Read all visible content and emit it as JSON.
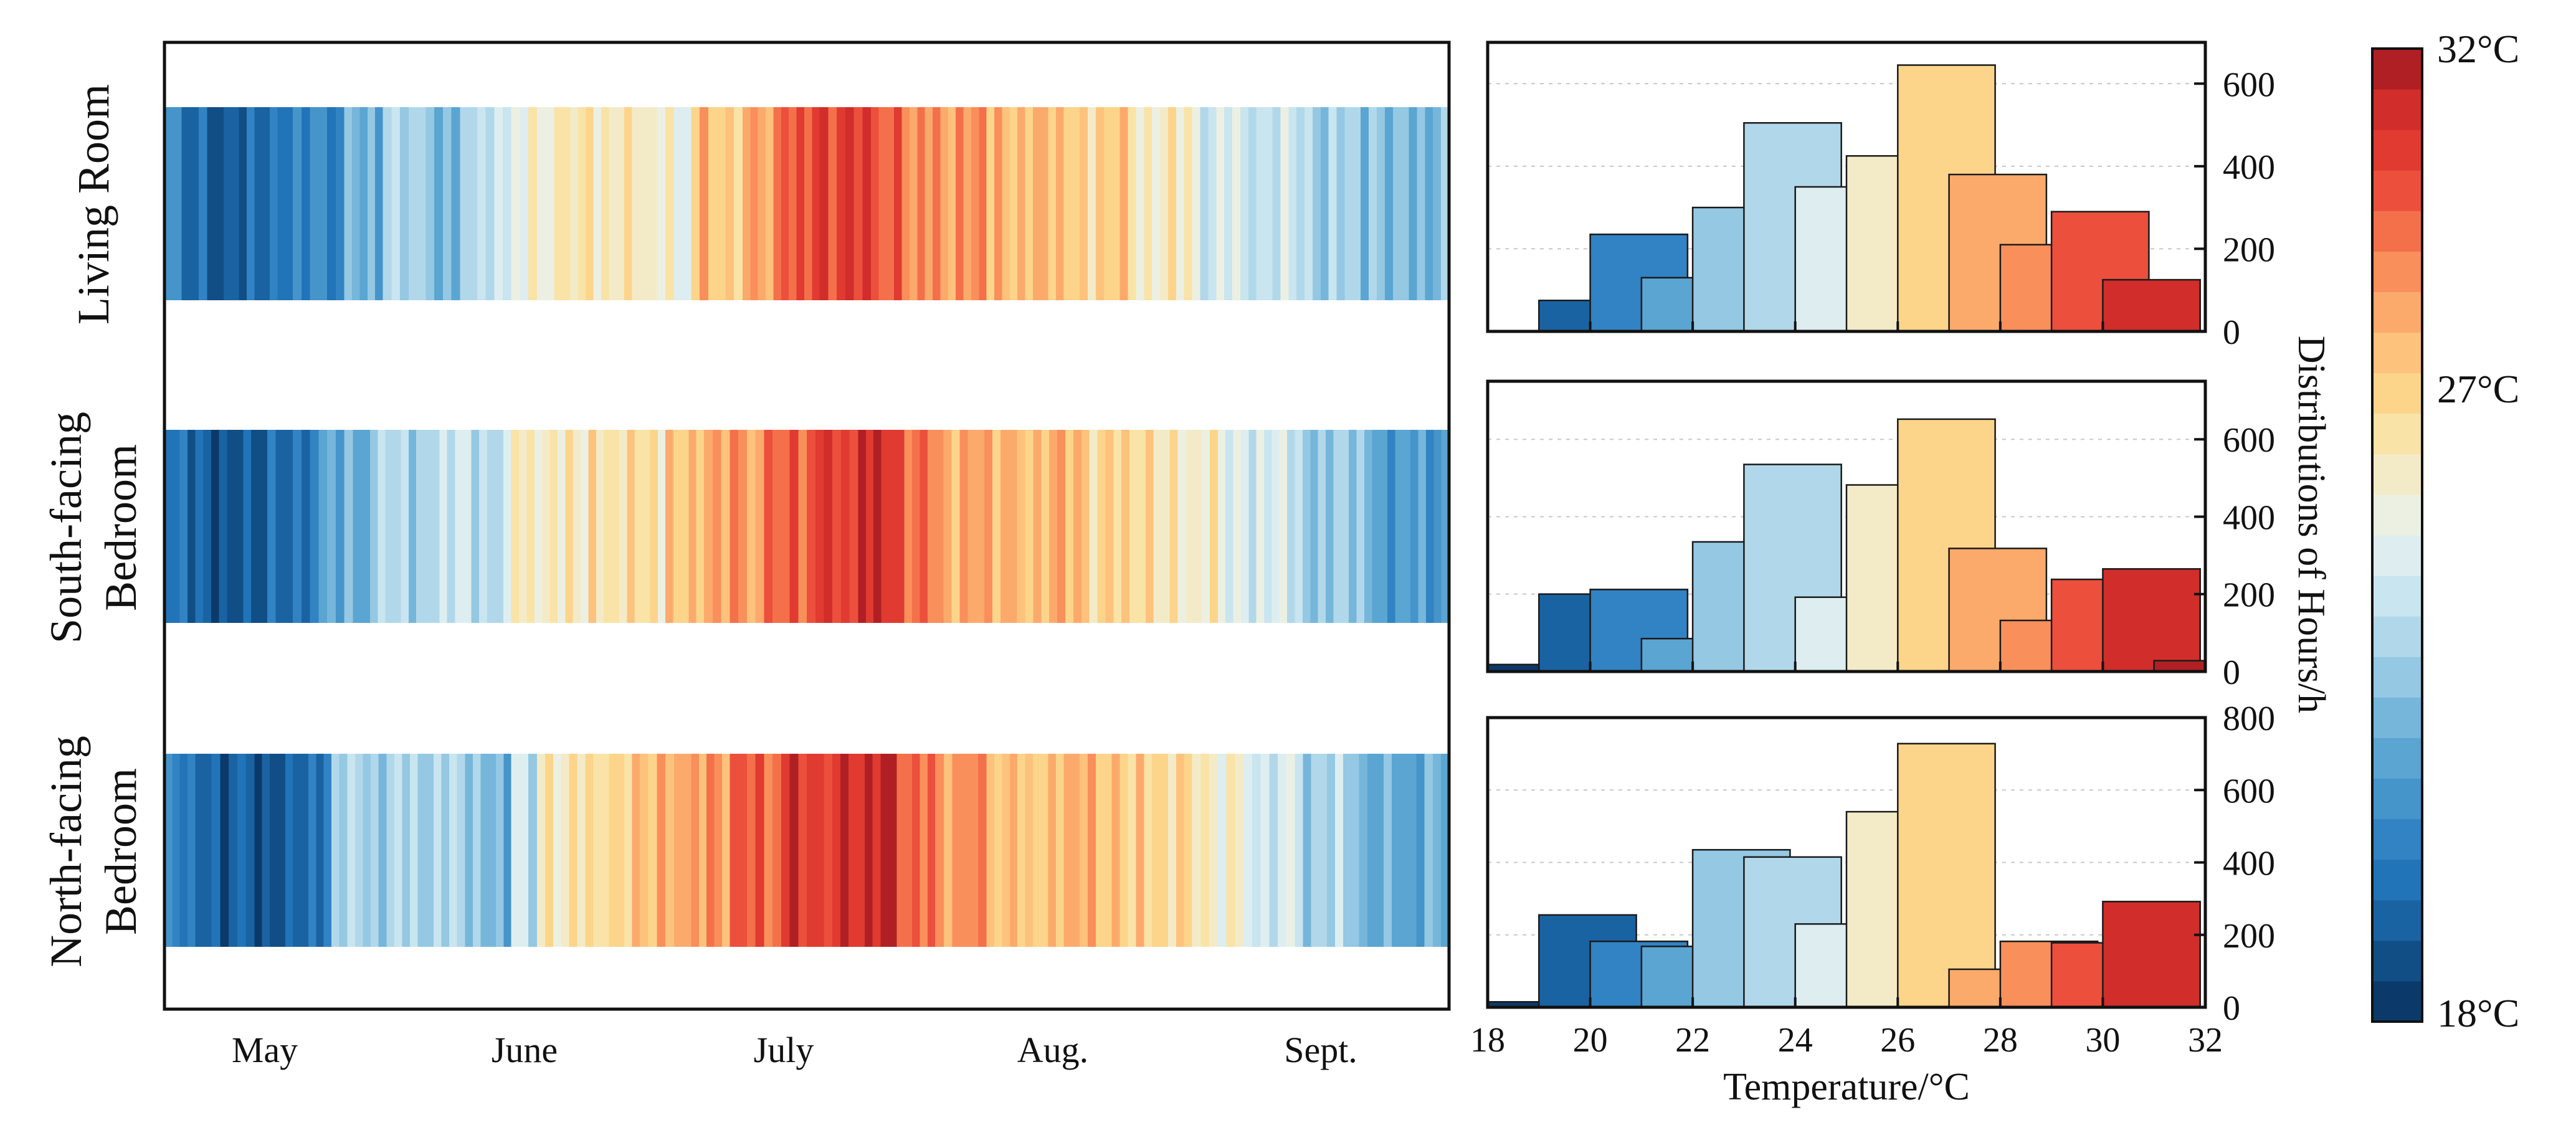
{
  "chart_data": {
    "type": "heatmap-and-histogram",
    "colorbar": {
      "min": 18,
      "max": 32,
      "steps": 24,
      "min_label": "18°C",
      "mid_label": "27°C",
      "max_label": "32°C",
      "mid_value": 27,
      "colors_low_to_high": [
        "#0b3a6a",
        "#114e86",
        "#1a63a3",
        "#2274b8",
        "#3183c3",
        "#4594ca",
        "#5aa5d1",
        "#76b6db",
        "#94c8e3",
        "#b1d8ea",
        "#c9e5ef",
        "#deeef0",
        "#ecf0e3",
        "#f3ebc8",
        "#f9e3a6",
        "#fcd58b",
        "#fdc27c",
        "#fcaa6c",
        "#f98f5a",
        "#f4704a",
        "#ec4f3c",
        "#e03a31",
        "#d02d2b",
        "#b01f24"
      ]
    },
    "heatmap": {
      "months": [
        "May",
        "June",
        "July",
        "Aug.",
        "Sept."
      ],
      "rows": [
        {
          "label_lines": [
            "Living Room"
          ],
          "segments": [
            [
              0,
              0.02,
              20.5
            ],
            [
              0.02,
              0.04,
              20
            ],
            [
              0.04,
              0.07,
              19.5
            ],
            [
              0.07,
              0.1,
              20
            ],
            [
              0.1,
              0.14,
              20.5
            ],
            [
              0.14,
              0.17,
              22
            ],
            [
              0.17,
              0.21,
              23.5
            ],
            [
              0.21,
              0.23,
              22.5
            ],
            [
              0.23,
              0.27,
              24
            ],
            [
              0.27,
              0.31,
              25.5
            ],
            [
              0.31,
              0.37,
              26.2
            ],
            [
              0.37,
              0.41,
              25.5
            ],
            [
              0.41,
              0.45,
              27.5
            ],
            [
              0.45,
              0.48,
              28.5
            ],
            [
              0.48,
              0.51,
              30
            ],
            [
              0.51,
              0.55,
              30.5
            ],
            [
              0.55,
              0.58,
              29.5
            ],
            [
              0.58,
              0.64,
              28.5
            ],
            [
              0.64,
              0.7,
              27.8
            ],
            [
              0.7,
              0.75,
              27
            ],
            [
              0.75,
              0.8,
              26
            ],
            [
              0.8,
              0.85,
              24.5
            ],
            [
              0.85,
              0.9,
              24
            ],
            [
              0.9,
              0.95,
              23
            ],
            [
              0.95,
              1,
              22.5
            ]
          ]
        },
        {
          "label_lines": [
            "South-facing",
            "Bedroom"
          ],
          "segments": [
            [
              0,
              0.03,
              20
            ],
            [
              0.03,
              0.08,
              19
            ],
            [
              0.08,
              0.12,
              20
            ],
            [
              0.12,
              0.16,
              22
            ],
            [
              0.16,
              0.22,
              23.5
            ],
            [
              0.22,
              0.27,
              24
            ],
            [
              0.27,
              0.33,
              26
            ],
            [
              0.33,
              0.39,
              26.5
            ],
            [
              0.39,
              0.42,
              27.5
            ],
            [
              0.42,
              0.46,
              28.5
            ],
            [
              0.46,
              0.5,
              29.5
            ],
            [
              0.5,
              0.54,
              30.5
            ],
            [
              0.54,
              0.57,
              31
            ],
            [
              0.57,
              0.6,
              29.5
            ],
            [
              0.6,
              0.67,
              28.2
            ],
            [
              0.67,
              0.72,
              27.8
            ],
            [
              0.72,
              0.77,
              27
            ],
            [
              0.77,
              0.82,
              26
            ],
            [
              0.82,
              0.88,
              24.5
            ],
            [
              0.88,
              0.94,
              23
            ],
            [
              0.94,
              1,
              21.5
            ]
          ]
        },
        {
          "label_lines": [
            "North-facing",
            "Bedroom"
          ],
          "segments": [
            [
              0,
              0.03,
              20.5
            ],
            [
              0.03,
              0.07,
              19.5
            ],
            [
              0.07,
              0.1,
              19
            ],
            [
              0.1,
              0.13,
              20
            ],
            [
              0.13,
              0.24,
              23.3
            ],
            [
              0.24,
              0.27,
              22.5
            ],
            [
              0.27,
              0.29,
              24
            ],
            [
              0.29,
              0.34,
              26.2
            ],
            [
              0.34,
              0.37,
              27
            ],
            [
              0.37,
              0.41,
              27.8
            ],
            [
              0.41,
              0.44,
              28.5
            ],
            [
              0.44,
              0.48,
              29.5
            ],
            [
              0.48,
              0.52,
              30.5
            ],
            [
              0.52,
              0.57,
              31
            ],
            [
              0.57,
              0.6,
              29.5
            ],
            [
              0.6,
              0.64,
              28.5
            ],
            [
              0.64,
              0.7,
              27.5
            ],
            [
              0.7,
              0.75,
              27.8
            ],
            [
              0.75,
              0.8,
              27
            ],
            [
              0.8,
              0.84,
              26
            ],
            [
              0.84,
              0.88,
              24.5
            ],
            [
              0.88,
              0.93,
              23.5
            ],
            [
              0.93,
              1,
              22
            ]
          ]
        }
      ]
    },
    "histograms": {
      "bins": [
        18,
        19,
        20,
        21,
        22,
        23,
        24,
        25,
        26,
        27,
        28,
        29,
        30,
        31
      ],
      "bin_width": 1.9,
      "x_ticks": [
        18,
        20,
        22,
        24,
        26,
        28,
        30,
        32
      ],
      "xlim": [
        18,
        32
      ],
      "xlabel": "Temperature/°C",
      "ylabel": "Distributions of Hours/h",
      "panels": [
        {
          "room": "Living Room",
          "ylim": [
            0,
            700
          ],
          "y_ticks": [
            0,
            200,
            400,
            600
          ],
          "values": [
            0,
            75,
            235,
            130,
            300,
            505,
            350,
            425,
            645,
            380,
            210,
            290,
            125,
            0
          ]
        },
        {
          "room": "South-facing Bedroom",
          "ylim": [
            0,
            750
          ],
          "y_ticks": [
            0,
            200,
            400,
            600
          ],
          "values": [
            18,
            200,
            212,
            85,
            335,
            535,
            192,
            482,
            652,
            318,
            132,
            238,
            265,
            28
          ]
        },
        {
          "room": "North-facing Bedroom",
          "ylim": [
            0,
            800
          ],
          "y_ticks": [
            0,
            200,
            400,
            600,
            800
          ],
          "values": [
            15,
            255,
            182,
            168,
            435,
            415,
            230,
            540,
            728,
            105,
            182,
            178,
            292,
            0
          ]
        }
      ]
    }
  }
}
